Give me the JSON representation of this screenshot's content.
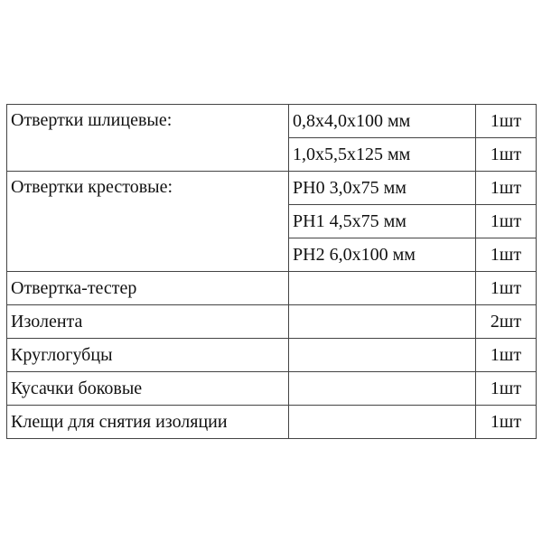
{
  "table": {
    "groups": [
      {
        "name": "Отвертки шлицевые:",
        "rows": [
          {
            "spec": "0,8x4,0x100 мм",
            "qty": "1шт"
          },
          {
            "spec": "1,0x5,5x125 мм",
            "qty": "1шт"
          }
        ]
      },
      {
        "name": "Отвертки крестовые:",
        "rows": [
          {
            "spec": "PH0 3,0x75 мм",
            "qty": "1шт"
          },
          {
            "spec": "PH1 4,5x75 мм",
            "qty": "1шт"
          },
          {
            "spec": "PH2 6,0x100 мм",
            "qty": "1шт"
          }
        ]
      },
      {
        "name": "Отвертка-тестер",
        "rows": [
          {
            "spec": "",
            "qty": "1шт"
          }
        ]
      },
      {
        "name": "Изолента",
        "rows": [
          {
            "spec": "",
            "qty": "2шт"
          }
        ]
      },
      {
        "name": "Круглогубцы",
        "rows": [
          {
            "spec": "",
            "qty": "1шт"
          }
        ]
      },
      {
        "name": "Кусачки боковые",
        "rows": [
          {
            "spec": "",
            "qty": "1шт"
          }
        ]
      },
      {
        "name": "Клещи для снятия изоляции",
        "rows": [
          {
            "spec": "",
            "qty": "1шт"
          }
        ]
      }
    ]
  }
}
